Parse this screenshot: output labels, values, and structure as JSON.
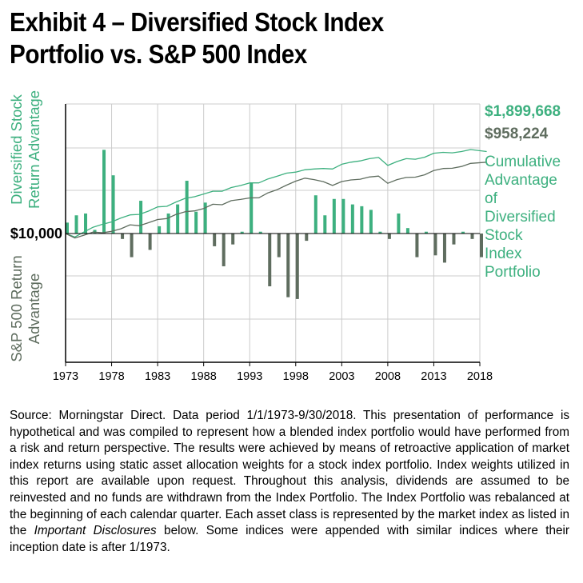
{
  "header": {
    "title_line1": "Exhibit 4 – Diversified Stock Index",
    "title_line2": "Portfolio vs. S&P 500 Index"
  },
  "colors": {
    "diversified": "#3db07f",
    "sp500": "#5f6d5f",
    "grid": "#cccccc",
    "text_green": "#3db07f",
    "text_gray": "#5f6d5f"
  },
  "chart_data": {
    "type": "bar",
    "x_ticks": [
      "1973",
      "1978",
      "1983",
      "1988",
      "1993",
      "1998",
      "2003",
      "2008",
      "2013",
      "2018"
    ],
    "baseline_label": "$10,000",
    "ylabel_top": [
      "Diversified Stock",
      "Return Advantage"
    ],
    "ylabel_bottom": [
      "S&P 500 Return",
      "Advantage"
    ],
    "right_label": [
      "Cumulative",
      "Advantage",
      "of",
      "Diversified",
      "Stock",
      "Index",
      "Portfolio"
    ],
    "ending_values": {
      "diversified": "$1,899,668",
      "sp500": "$958,224"
    },
    "grid": true,
    "series": [
      {
        "name": "Return Advantage",
        "note": "annual return difference (relative scale; positive = Diversified Stock advantage, negative = S&P 500 advantage)",
        "years": [
          1973,
          1974,
          1975,
          1976,
          1977,
          1978,
          1979,
          1980,
          1981,
          1982,
          1983,
          1984,
          1985,
          1986,
          1987,
          1988,
          1989,
          1990,
          1991,
          1992,
          1993,
          1994,
          1995,
          1996,
          1997,
          1998,
          1999,
          2000,
          2001,
          2002,
          2003,
          2004,
          2005,
          2006,
          2007,
          2008,
          2009,
          2010,
          2011,
          2012,
          2013,
          2014,
          2015,
          2016,
          2017,
          2018
        ],
        "values": [
          3,
          5,
          5.5,
          1,
          23,
          16,
          -1.5,
          -6.5,
          9,
          -4.5,
          2,
          5.5,
          8,
          14.5,
          6,
          8.5,
          -3.5,
          -9,
          -3,
          0.5,
          14,
          0.5,
          -14.5,
          -6.5,
          -17.5,
          -18,
          -2,
          10.5,
          5,
          9.5,
          9.5,
          8,
          7.5,
          6.5,
          0.5,
          -1.5,
          5.5,
          1.5,
          -6.5,
          0.5,
          -6,
          -8,
          -3,
          0.5,
          -1.5,
          -6.5
        ]
      },
      {
        "name": "Diversified Stock Index Portfolio",
        "note": "cumulative growth of $10,000 (log scale)",
        "years": [
          1973,
          1974,
          1975,
          1976,
          1977,
          1978,
          1979,
          1980,
          1981,
          1982,
          1983,
          1984,
          1985,
          1986,
          1987,
          1988,
          1989,
          1990,
          1991,
          1992,
          1993,
          1994,
          1995,
          1996,
          1997,
          1998,
          1999,
          2000,
          2001,
          2002,
          2003,
          2004,
          2005,
          2006,
          2007,
          2008,
          2009,
          2010,
          2011,
          2012,
          2013,
          2014,
          2015,
          2016,
          2017,
          2018.75
        ],
        "values": [
          10000,
          8000,
          11000,
          15000,
          18000,
          21000,
          27000,
          33000,
          34000,
          42000,
          55000,
          57000,
          75000,
          95000,
          105000,
          125000,
          150000,
          150000,
          190000,
          215000,
          255000,
          255000,
          330000,
          395000,
          475000,
          510000,
          590000,
          620000,
          640000,
          620000,
          840000,
          960000,
          1040000,
          1200000,
          1300000,
          780000,
          1000000,
          1200000,
          1160000,
          1320000,
          1700000,
          1800000,
          1750000,
          1900000,
          2150000,
          1899668
        ]
      },
      {
        "name": "S&P 500 Index",
        "note": "cumulative growth of $10,000 (log scale)",
        "years": [
          1973,
          1974,
          1975,
          1976,
          1977,
          1978,
          1979,
          1980,
          1981,
          1982,
          1983,
          1984,
          1985,
          1986,
          1987,
          1988,
          1989,
          1990,
          1991,
          1992,
          1993,
          1994,
          1995,
          1996,
          1997,
          1998,
          1999,
          2000,
          2001,
          2002,
          2003,
          2004,
          2005,
          2006,
          2007,
          2008,
          2009,
          2010,
          2011,
          2012,
          2013,
          2014,
          2015,
          2016,
          2017,
          2018.75
        ],
        "values": [
          10000,
          7500,
          9000,
          11000,
          10500,
          11500,
          13500,
          17500,
          16500,
          20000,
          24500,
          26000,
          34000,
          40500,
          42500,
          49500,
          65000,
          63000,
          82000,
          88500,
          97500,
          98500,
          135000,
          166000,
          221000,
          285000,
          345000,
          315000,
          277000,
          216000,
          278000,
          308000,
          323000,
          373000,
          394000,
          248000,
          314000,
          361000,
          368000,
          427000,
          565000,
          642000,
          651000,
          729000,
          888000,
          958224
        ]
      }
    ]
  },
  "footer": {
    "source_part1": "Source: Morningstar Direct. Data period 1/1/1973-9/30/2018. This presentation of performance is hypothetical and was compiled to represent how a blended index portfolio would have performed from a risk and return perspective. The results were achieved by means of retroactive application of market index returns using static asset allocation weights for a stock index portfolio. Index weights utilized in this report are available upon request. Throughout this analysis, dividends are assumed to be reinvested and no funds are withdrawn from the Index Portfolio. The Index Portfolio was rebalanced at the beginning of each calendar quarter. Each asset class is represented by the market index as listed in the ",
    "source_italic": "Important Disclosures",
    "source_part2": " below. Some indices were appended with similar indices where their inception date is after 1/1973."
  }
}
